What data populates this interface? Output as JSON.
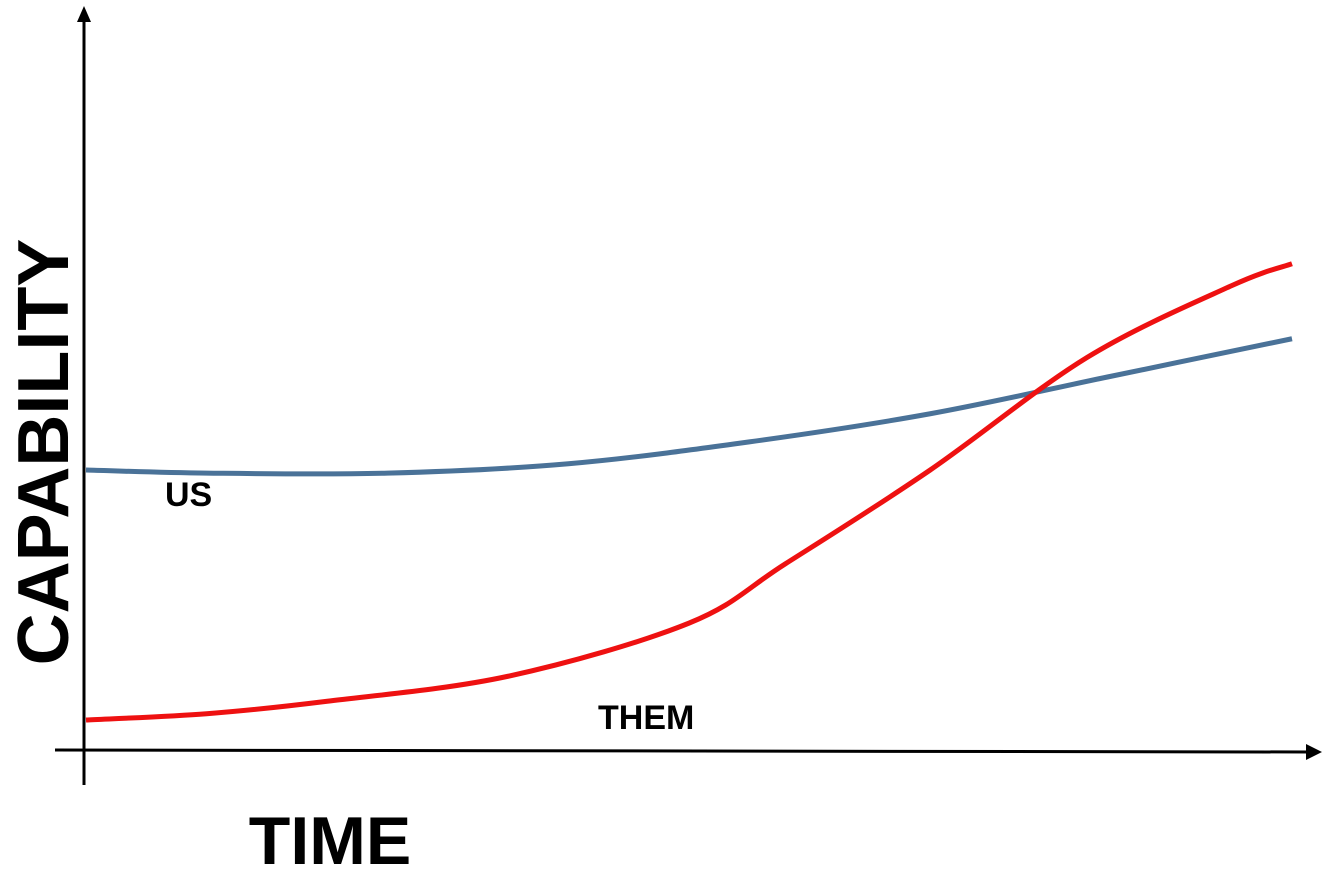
{
  "chart_data": {
    "type": "line",
    "title": "",
    "xlabel": "TIME",
    "ylabel": "CAPABILITY",
    "grid": false,
    "legend": "none",
    "ticks": "none",
    "xlim": [
      0,
      100
    ],
    "ylim": [
      0,
      100
    ],
    "series": [
      {
        "name": "US",
        "color": "#4a7298",
        "points": [
          [
            0,
            44
          ],
          [
            10,
            43.5
          ],
          [
            25,
            43.5
          ],
          [
            40,
            45
          ],
          [
            55,
            48.5
          ],
          [
            70,
            53
          ],
          [
            85,
            59
          ],
          [
            100,
            65
          ]
        ]
      },
      {
        "name": "THEM",
        "color": "#ee1111",
        "points": [
          [
            0,
            4
          ],
          [
            10,
            5
          ],
          [
            20,
            7
          ],
          [
            35,
            11
          ],
          [
            50,
            19.5
          ],
          [
            58,
            29
          ],
          [
            70,
            44
          ],
          [
            83,
            62
          ],
          [
            95,
            73.5
          ],
          [
            100,
            77
          ]
        ]
      }
    ]
  }
}
